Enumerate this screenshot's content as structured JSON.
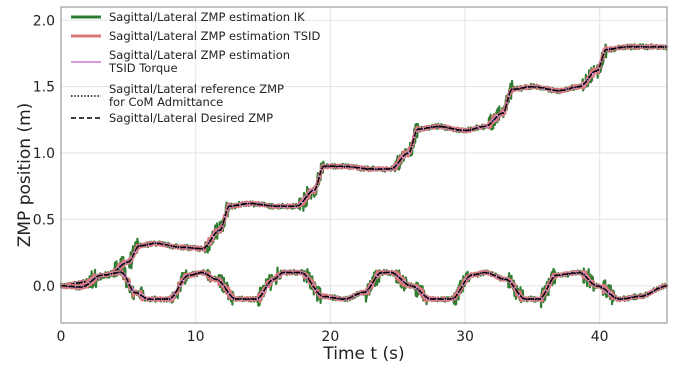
{
  "chart_data": {
    "type": "line",
    "title": "",
    "xlabel": "Time t (s)",
    "ylabel": "ZMP position (m)",
    "xlim": [
      0,
      45
    ],
    "ylim": [
      -0.28,
      2.1
    ],
    "xticks": [
      0,
      10,
      20,
      30,
      40
    ],
    "xtick_labels": [
      "0",
      "10",
      "20",
      "30",
      "40"
    ],
    "yticks": [
      0.0,
      0.5,
      1.0,
      1.5,
      2.0
    ],
    "ytick_labels": [
      "0.0",
      "0.5",
      "1.0",
      "1.5",
      "2.0"
    ],
    "grid": true,
    "legend_position": "top-left",
    "series_meta": [
      {
        "name": "Sagittal/Lateral ZMP estimation IK",
        "color": "#2e7d32",
        "style": "solid-thick"
      },
      {
        "name": "Sagittal/Lateral ZMP estimation TSID",
        "color": "#d9777a",
        "style": "solid-thick"
      },
      {
        "name": "Sagittal/Lateral ZMP estimation TSID Torque",
        "color": "#d89be0",
        "style": "solid"
      },
      {
        "name": "Sagittal/Lateral reference ZMP for CoM Admittance",
        "color": "#000000",
        "style": "dotted"
      },
      {
        "name": "Sagittal/Lateral Desired ZMP",
        "color": "#000000",
        "style": "dashed"
      }
    ],
    "sagittal_desired": {
      "x": [
        0,
        2.0,
        3.5,
        5.0,
        5.8,
        7.0,
        9.0,
        10.5,
        11.8,
        12.5,
        14,
        16,
        17.5,
        18.8,
        19.5,
        21,
        23,
        24.5,
        25.8,
        26.5,
        28,
        30,
        31.5,
        32.8,
        33.5,
        35,
        37,
        38.5,
        39.8,
        40.5,
        42,
        45
      ],
      "y": [
        0.0,
        0.03,
        0.08,
        0.18,
        0.3,
        0.32,
        0.29,
        0.28,
        0.42,
        0.6,
        0.62,
        0.6,
        0.6,
        0.72,
        0.9,
        0.9,
        0.88,
        0.88,
        1.0,
        1.18,
        1.2,
        1.17,
        1.2,
        1.3,
        1.48,
        1.5,
        1.47,
        1.5,
        1.62,
        1.78,
        1.8,
        1.8
      ]
    },
    "lateral_desired": {
      "x": [
        0,
        1.5,
        3.0,
        4.5,
        5.5,
        6.5,
        8.0,
        9.5,
        10.5,
        11.5,
        13.0,
        14.5,
        15.8,
        16.5,
        17.8,
        19.5,
        21.0,
        22.5,
        23.8,
        24.5,
        26.0,
        27.5,
        29.0,
        30.5,
        31.5,
        33.0,
        34.5,
        35.5,
        36.8,
        38.5,
        39.8,
        41.5,
        43.0,
        45
      ],
      "y": [
        0.0,
        -0.01,
        0.08,
        0.1,
        -0.05,
        -0.1,
        -0.1,
        0.08,
        0.1,
        0.05,
        -0.1,
        -0.1,
        0.05,
        0.1,
        0.1,
        -0.08,
        -0.1,
        -0.05,
        0.1,
        0.1,
        0.0,
        -0.1,
        -0.1,
        0.08,
        0.1,
        0.05,
        -0.1,
        -0.1,
        0.08,
        0.1,
        0.0,
        -0.1,
        -0.08,
        0.0
      ]
    }
  }
}
